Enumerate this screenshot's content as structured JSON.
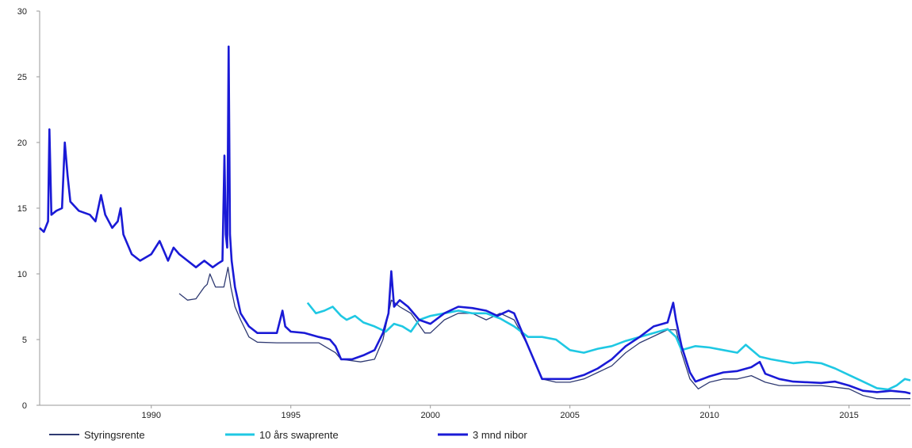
{
  "chart_data": {
    "type": "line",
    "title": "",
    "xlabel": "",
    "ylabel": "",
    "xlim": [
      1986,
      2017.2
    ],
    "ylim": [
      0,
      30
    ],
    "grid": false,
    "legend_position": "bottom",
    "x_ticks": [
      1990,
      1995,
      2000,
      2005,
      2010,
      2015
    ],
    "y_ticks": [
      0,
      5,
      10,
      15,
      20,
      25,
      30
    ],
    "series": [
      {
        "name": "Styringsrente",
        "color": "#2f3a72",
        "points": [
          [
            1991.0,
            8.5
          ],
          [
            1991.3,
            8.0
          ],
          [
            1991.6,
            8.1
          ],
          [
            1991.9,
            9.0
          ],
          [
            1992.0,
            9.2
          ],
          [
            1992.1,
            10.0
          ],
          [
            1992.3,
            9.0
          ],
          [
            1992.6,
            9.0
          ],
          [
            1992.75,
            10.5
          ],
          [
            1992.85,
            9.0
          ],
          [
            1993.0,
            7.5
          ],
          [
            1993.2,
            6.5
          ],
          [
            1993.5,
            5.2
          ],
          [
            1993.8,
            4.8
          ],
          [
            1994.5,
            4.75
          ],
          [
            1995.5,
            4.75
          ],
          [
            1996.0,
            4.75
          ],
          [
            1996.2,
            4.5
          ],
          [
            1996.6,
            4.0
          ],
          [
            1996.8,
            3.5
          ],
          [
            1997.5,
            3.3
          ],
          [
            1998.0,
            3.5
          ],
          [
            1998.3,
            5.0
          ],
          [
            1998.6,
            8.0
          ],
          [
            1998.9,
            7.5
          ],
          [
            1999.3,
            7.0
          ],
          [
            1999.8,
            5.5
          ],
          [
            2000.0,
            5.5
          ],
          [
            2000.5,
            6.5
          ],
          [
            2001.0,
            7.0
          ],
          [
            2001.5,
            7.0
          ],
          [
            2002.0,
            6.5
          ],
          [
            2002.5,
            7.0
          ],
          [
            2003.0,
            6.5
          ],
          [
            2003.5,
            4.5
          ],
          [
            2004.0,
            2.0
          ],
          [
            2004.5,
            1.75
          ],
          [
            2005.0,
            1.75
          ],
          [
            2005.5,
            2.0
          ],
          [
            2006.0,
            2.5
          ],
          [
            2006.5,
            3.0
          ],
          [
            2007.0,
            4.0
          ],
          [
            2007.5,
            4.75
          ],
          [
            2008.0,
            5.25
          ],
          [
            2008.5,
            5.75
          ],
          [
            2008.8,
            5.75
          ],
          [
            2009.0,
            4.0
          ],
          [
            2009.3,
            2.0
          ],
          [
            2009.6,
            1.25
          ],
          [
            2010.0,
            1.75
          ],
          [
            2010.5,
            2.0
          ],
          [
            2011.0,
            2.0
          ],
          [
            2011.5,
            2.25
          ],
          [
            2012.0,
            1.75
          ],
          [
            2012.5,
            1.5
          ],
          [
            2013.0,
            1.5
          ],
          [
            2014.0,
            1.5
          ],
          [
            2015.0,
            1.25
          ],
          [
            2015.5,
            0.75
          ],
          [
            2016.0,
            0.5
          ],
          [
            2016.5,
            0.5
          ],
          [
            2017.2,
            0.5
          ]
        ]
      },
      {
        "name": "10 års swaprente",
        "color": "#1fc8e3",
        "points": [
          [
            1995.6,
            7.8
          ],
          [
            1995.9,
            7.0
          ],
          [
            1996.2,
            7.2
          ],
          [
            1996.5,
            7.5
          ],
          [
            1996.8,
            6.8
          ],
          [
            1997.0,
            6.5
          ],
          [
            1997.3,
            6.8
          ],
          [
            1997.6,
            6.3
          ],
          [
            1998.0,
            6.0
          ],
          [
            1998.4,
            5.6
          ],
          [
            1998.7,
            6.2
          ],
          [
            1999.0,
            6.0
          ],
          [
            1999.3,
            5.6
          ],
          [
            1999.6,
            6.5
          ],
          [
            2000.0,
            6.8
          ],
          [
            2000.5,
            7.0
          ],
          [
            2001.0,
            7.2
          ],
          [
            2001.5,
            7.0
          ],
          [
            2002.0,
            7.0
          ],
          [
            2002.5,
            6.6
          ],
          [
            2003.0,
            6.0
          ],
          [
            2003.5,
            5.2
          ],
          [
            2004.0,
            5.2
          ],
          [
            2004.5,
            5.0
          ],
          [
            2005.0,
            4.2
          ],
          [
            2005.5,
            4.0
          ],
          [
            2006.0,
            4.3
          ],
          [
            2006.5,
            4.5
          ],
          [
            2007.0,
            4.9
          ],
          [
            2007.5,
            5.2
          ],
          [
            2008.0,
            5.5
          ],
          [
            2008.5,
            5.8
          ],
          [
            2008.8,
            5.2
          ],
          [
            2009.0,
            4.2
          ],
          [
            2009.5,
            4.5
          ],
          [
            2010.0,
            4.4
          ],
          [
            2010.5,
            4.2
          ],
          [
            2011.0,
            4.0
          ],
          [
            2011.3,
            4.6
          ],
          [
            2011.8,
            3.7
          ],
          [
            2012.2,
            3.5
          ],
          [
            2013.0,
            3.2
          ],
          [
            2013.5,
            3.3
          ],
          [
            2014.0,
            3.2
          ],
          [
            2014.5,
            2.8
          ],
          [
            2015.0,
            2.3
          ],
          [
            2015.5,
            1.8
          ],
          [
            2016.0,
            1.3
          ],
          [
            2016.4,
            1.2
          ],
          [
            2016.7,
            1.5
          ],
          [
            2017.0,
            2.0
          ],
          [
            2017.2,
            1.9
          ]
        ]
      },
      {
        "name": "3 mnd nibor",
        "color": "#1a1ad6",
        "points": [
          [
            1986.0,
            13.5
          ],
          [
            1986.15,
            13.2
          ],
          [
            1986.3,
            14.0
          ],
          [
            1986.35,
            21.0
          ],
          [
            1986.42,
            14.5
          ],
          [
            1986.6,
            14.8
          ],
          [
            1986.8,
            15.0
          ],
          [
            1986.9,
            20.0
          ],
          [
            1987.0,
            17.5
          ],
          [
            1987.1,
            15.5
          ],
          [
            1987.4,
            14.8
          ],
          [
            1987.8,
            14.5
          ],
          [
            1988.0,
            14.0
          ],
          [
            1988.2,
            16.0
          ],
          [
            1988.35,
            14.5
          ],
          [
            1988.6,
            13.5
          ],
          [
            1988.8,
            14.0
          ],
          [
            1988.9,
            15.0
          ],
          [
            1989.0,
            13.0
          ],
          [
            1989.3,
            11.5
          ],
          [
            1989.6,
            11.0
          ],
          [
            1990.0,
            11.5
          ],
          [
            1990.3,
            12.5
          ],
          [
            1990.6,
            11.0
          ],
          [
            1990.8,
            12.0
          ],
          [
            1991.0,
            11.5
          ],
          [
            1991.3,
            11.0
          ],
          [
            1991.6,
            10.5
          ],
          [
            1991.9,
            11.0
          ],
          [
            1992.2,
            10.5
          ],
          [
            1992.4,
            10.8
          ],
          [
            1992.55,
            11.0
          ],
          [
            1992.62,
            19.0
          ],
          [
            1992.67,
            13.0
          ],
          [
            1992.72,
            12.0
          ],
          [
            1992.77,
            27.3
          ],
          [
            1992.82,
            13.0
          ],
          [
            1992.88,
            11.0
          ],
          [
            1993.0,
            9.0
          ],
          [
            1993.2,
            7.0
          ],
          [
            1993.5,
            6.0
          ],
          [
            1993.8,
            5.5
          ],
          [
            1994.2,
            5.5
          ],
          [
            1994.5,
            5.5
          ],
          [
            1994.7,
            7.2
          ],
          [
            1994.8,
            6.0
          ],
          [
            1995.0,
            5.6
          ],
          [
            1995.5,
            5.5
          ],
          [
            1996.0,
            5.2
          ],
          [
            1996.4,
            5.0
          ],
          [
            1996.6,
            4.5
          ],
          [
            1996.8,
            3.5
          ],
          [
            1997.2,
            3.5
          ],
          [
            1997.6,
            3.8
          ],
          [
            1998.0,
            4.2
          ],
          [
            1998.3,
            5.5
          ],
          [
            1998.5,
            7.0
          ],
          [
            1998.6,
            10.2
          ],
          [
            1998.7,
            7.5
          ],
          [
            1998.9,
            8.0
          ],
          [
            1999.2,
            7.5
          ],
          [
            1999.6,
            6.5
          ],
          [
            2000.0,
            6.2
          ],
          [
            2000.5,
            7.0
          ],
          [
            2001.0,
            7.5
          ],
          [
            2001.5,
            7.4
          ],
          [
            2002.0,
            7.2
          ],
          [
            2002.4,
            6.8
          ],
          [
            2002.8,
            7.2
          ],
          [
            2003.0,
            7.0
          ],
          [
            2003.3,
            5.5
          ],
          [
            2003.7,
            3.5
          ],
          [
            2004.0,
            2.0
          ],
          [
            2004.5,
            2.0
          ],
          [
            2005.0,
            2.0
          ],
          [
            2005.5,
            2.3
          ],
          [
            2006.0,
            2.8
          ],
          [
            2006.5,
            3.5
          ],
          [
            2007.0,
            4.5
          ],
          [
            2007.5,
            5.2
          ],
          [
            2008.0,
            6.0
          ],
          [
            2008.5,
            6.3
          ],
          [
            2008.7,
            7.8
          ],
          [
            2008.8,
            6.5
          ],
          [
            2009.0,
            4.5
          ],
          [
            2009.3,
            2.5
          ],
          [
            2009.5,
            1.8
          ],
          [
            2010.0,
            2.2
          ],
          [
            2010.5,
            2.5
          ],
          [
            2011.0,
            2.6
          ],
          [
            2011.5,
            2.9
          ],
          [
            2011.8,
            3.3
          ],
          [
            2012.0,
            2.4
          ],
          [
            2012.5,
            2.0
          ],
          [
            2013.0,
            1.8
          ],
          [
            2014.0,
            1.7
          ],
          [
            2014.5,
            1.8
          ],
          [
            2015.0,
            1.5
          ],
          [
            2015.5,
            1.1
          ],
          [
            2016.0,
            1.0
          ],
          [
            2016.5,
            1.1
          ],
          [
            2017.0,
            1.0
          ],
          [
            2017.2,
            0.9
          ]
        ]
      }
    ]
  }
}
